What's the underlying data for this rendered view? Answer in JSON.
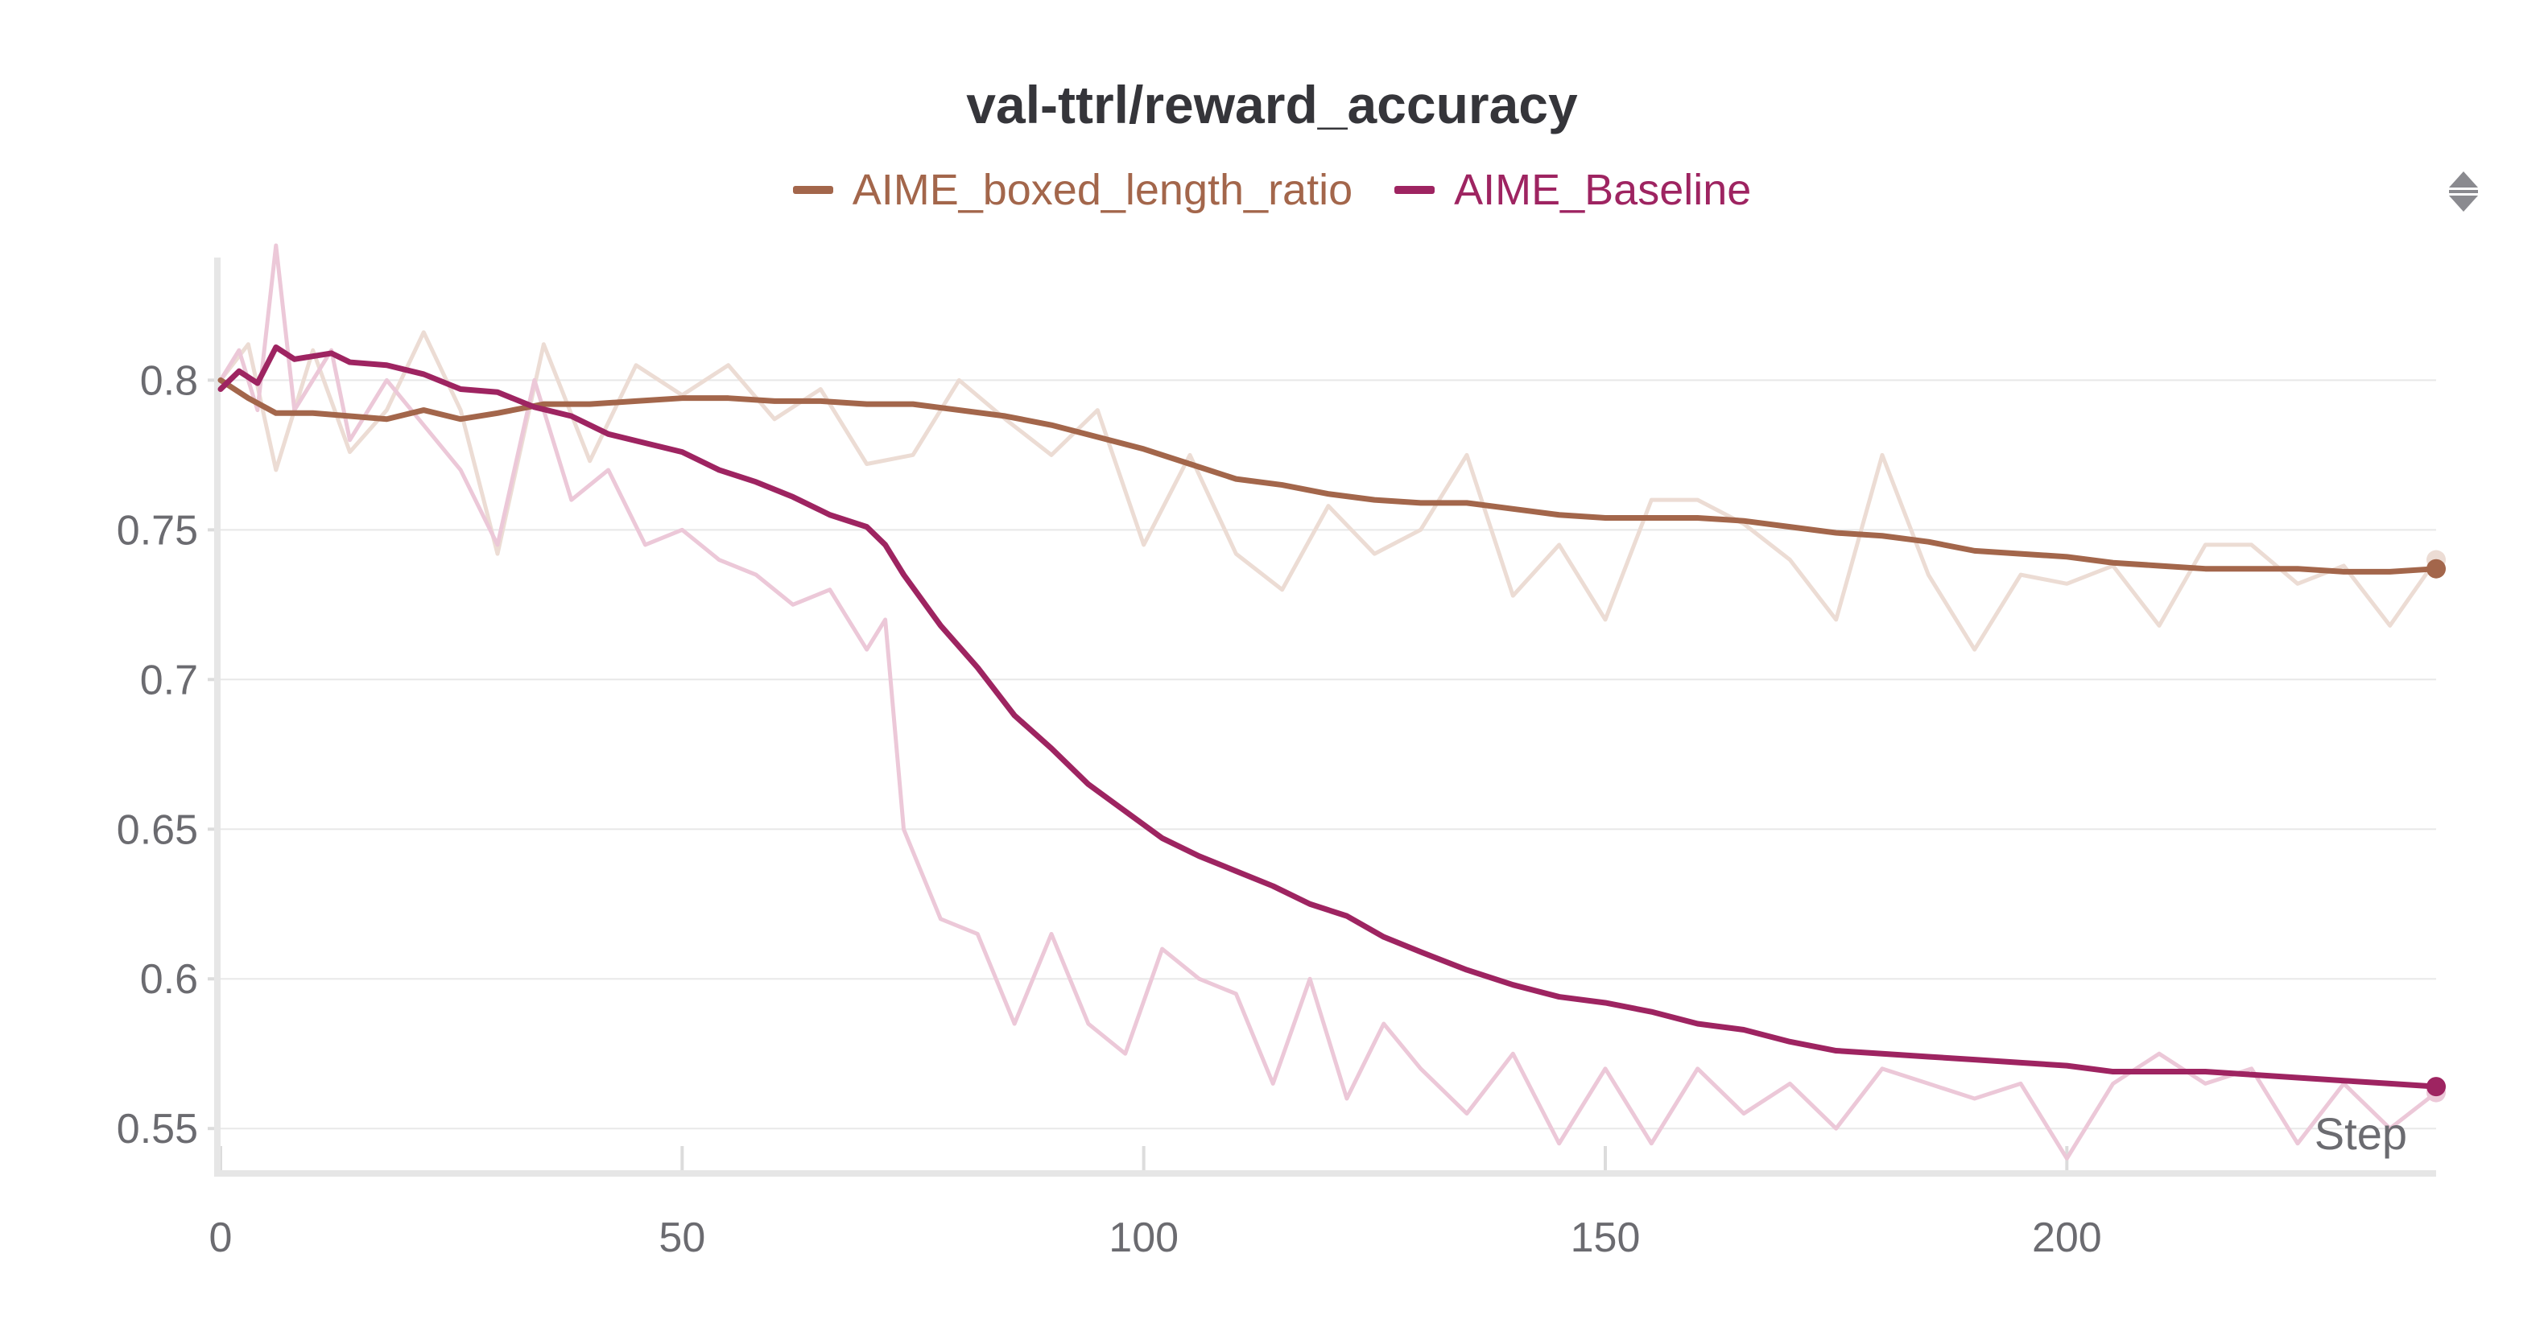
{
  "chart_data": {
    "type": "line",
    "title": "val-ttrl/reward_accuracy",
    "xlabel": "Step",
    "ylabel": "",
    "xlim": [
      0,
      240
    ],
    "ylim": [
      0.535,
      0.845
    ],
    "x_ticks": [
      0,
      50,
      100,
      150,
      200
    ],
    "x_tick_labels": [
      "0",
      "50",
      "100",
      "150",
      "200"
    ],
    "y_ticks": [
      0.55,
      0.6,
      0.65,
      0.7,
      0.75,
      0.8
    ],
    "y_tick_labels": [
      "0.55",
      "0.6",
      "0.65",
      "0.7",
      "0.75",
      "0.8"
    ],
    "grid": true,
    "legend_position": "top-center",
    "series": [
      {
        "name": "AIME_boxed_length_ratio",
        "color": "#a3664b",
        "raw_color": "#ecdcd4",
        "x": [
          0,
          3,
          6,
          10,
          14,
          18,
          22,
          26,
          30,
          35,
          40,
          45,
          50,
          55,
          60,
          65,
          70,
          75,
          80,
          85,
          90,
          95,
          100,
          105,
          110,
          115,
          120,
          125,
          130,
          135,
          140,
          145,
          150,
          155,
          160,
          165,
          170,
          175,
          180,
          185,
          190,
          195,
          200,
          205,
          210,
          215,
          220,
          225,
          230,
          235,
          240
        ],
        "smoothed": [
          0.8,
          0.794,
          0.789,
          0.789,
          0.788,
          0.787,
          0.79,
          0.787,
          0.789,
          0.792,
          0.792,
          0.793,
          0.794,
          0.794,
          0.793,
          0.793,
          0.792,
          0.792,
          0.79,
          0.788,
          0.785,
          0.781,
          0.777,
          0.772,
          0.767,
          0.765,
          0.762,
          0.76,
          0.759,
          0.759,
          0.757,
          0.755,
          0.754,
          0.754,
          0.754,
          0.753,
          0.751,
          0.749,
          0.748,
          0.746,
          0.743,
          0.742,
          0.741,
          0.739,
          0.738,
          0.737,
          0.737,
          0.737,
          0.736,
          0.736,
          0.737
        ],
        "raw": [
          0.8,
          0.812,
          0.77,
          0.81,
          0.776,
          0.79,
          0.816,
          0.79,
          0.742,
          0.812,
          0.773,
          0.805,
          0.795,
          0.805,
          0.787,
          0.797,
          0.772,
          0.775,
          0.8,
          0.787,
          0.775,
          0.79,
          0.745,
          0.775,
          0.742,
          0.73,
          0.758,
          0.742,
          0.75,
          0.775,
          0.728,
          0.745,
          0.72,
          0.76,
          0.76,
          0.752,
          0.74,
          0.72,
          0.775,
          0.735,
          0.71,
          0.735,
          0.732,
          0.738,
          0.718,
          0.745,
          0.745,
          0.732,
          0.738,
          0.718,
          0.74
        ]
      },
      {
        "name": "AIME_Baseline",
        "color": "#9e2461",
        "raw_color": "#ecc8d8",
        "x": [
          0,
          2,
          4,
          6,
          8,
          12,
          14,
          18,
          22,
          26,
          30,
          34,
          38,
          42,
          46,
          50,
          54,
          58,
          62,
          66,
          70,
          72,
          74,
          78,
          82,
          86,
          90,
          94,
          98,
          102,
          106,
          110,
          114,
          118,
          122,
          126,
          130,
          135,
          140,
          145,
          150,
          155,
          160,
          165,
          170,
          175,
          180,
          185,
          190,
          195,
          200,
          205,
          210,
          215,
          220,
          225,
          230,
          235,
          240
        ],
        "smoothed": [
          0.797,
          0.803,
          0.799,
          0.811,
          0.807,
          0.809,
          0.806,
          0.805,
          0.802,
          0.797,
          0.796,
          0.791,
          0.788,
          0.782,
          0.779,
          0.776,
          0.77,
          0.766,
          0.761,
          0.755,
          0.751,
          0.745,
          0.735,
          0.718,
          0.704,
          0.688,
          0.677,
          0.665,
          0.656,
          0.647,
          0.641,
          0.636,
          0.631,
          0.625,
          0.621,
          0.614,
          0.609,
          0.603,
          0.598,
          0.594,
          0.592,
          0.589,
          0.585,
          0.583,
          0.579,
          0.576,
          0.575,
          0.574,
          0.573,
          0.572,
          0.571,
          0.569,
          0.569,
          0.569,
          0.568,
          0.567,
          0.566,
          0.565,
          0.564
        ],
        "raw": [
          0.8,
          0.81,
          0.79,
          0.845,
          0.79,
          0.81,
          0.78,
          0.8,
          0.785,
          0.77,
          0.745,
          0.8,
          0.76,
          0.77,
          0.745,
          0.75,
          0.74,
          0.735,
          0.725,
          0.73,
          0.71,
          0.72,
          0.65,
          0.62,
          0.615,
          0.585,
          0.615,
          0.585,
          0.575,
          0.61,
          0.6,
          0.595,
          0.565,
          0.6,
          0.56,
          0.585,
          0.57,
          0.555,
          0.575,
          0.545,
          0.57,
          0.545,
          0.57,
          0.555,
          0.565,
          0.55,
          0.57,
          0.565,
          0.56,
          0.565,
          0.54,
          0.565,
          0.575,
          0.565,
          0.57,
          0.545,
          0.565,
          0.55,
          0.562
        ]
      }
    ]
  },
  "ui": {
    "menu_icon": "sort-arrows-icon"
  }
}
